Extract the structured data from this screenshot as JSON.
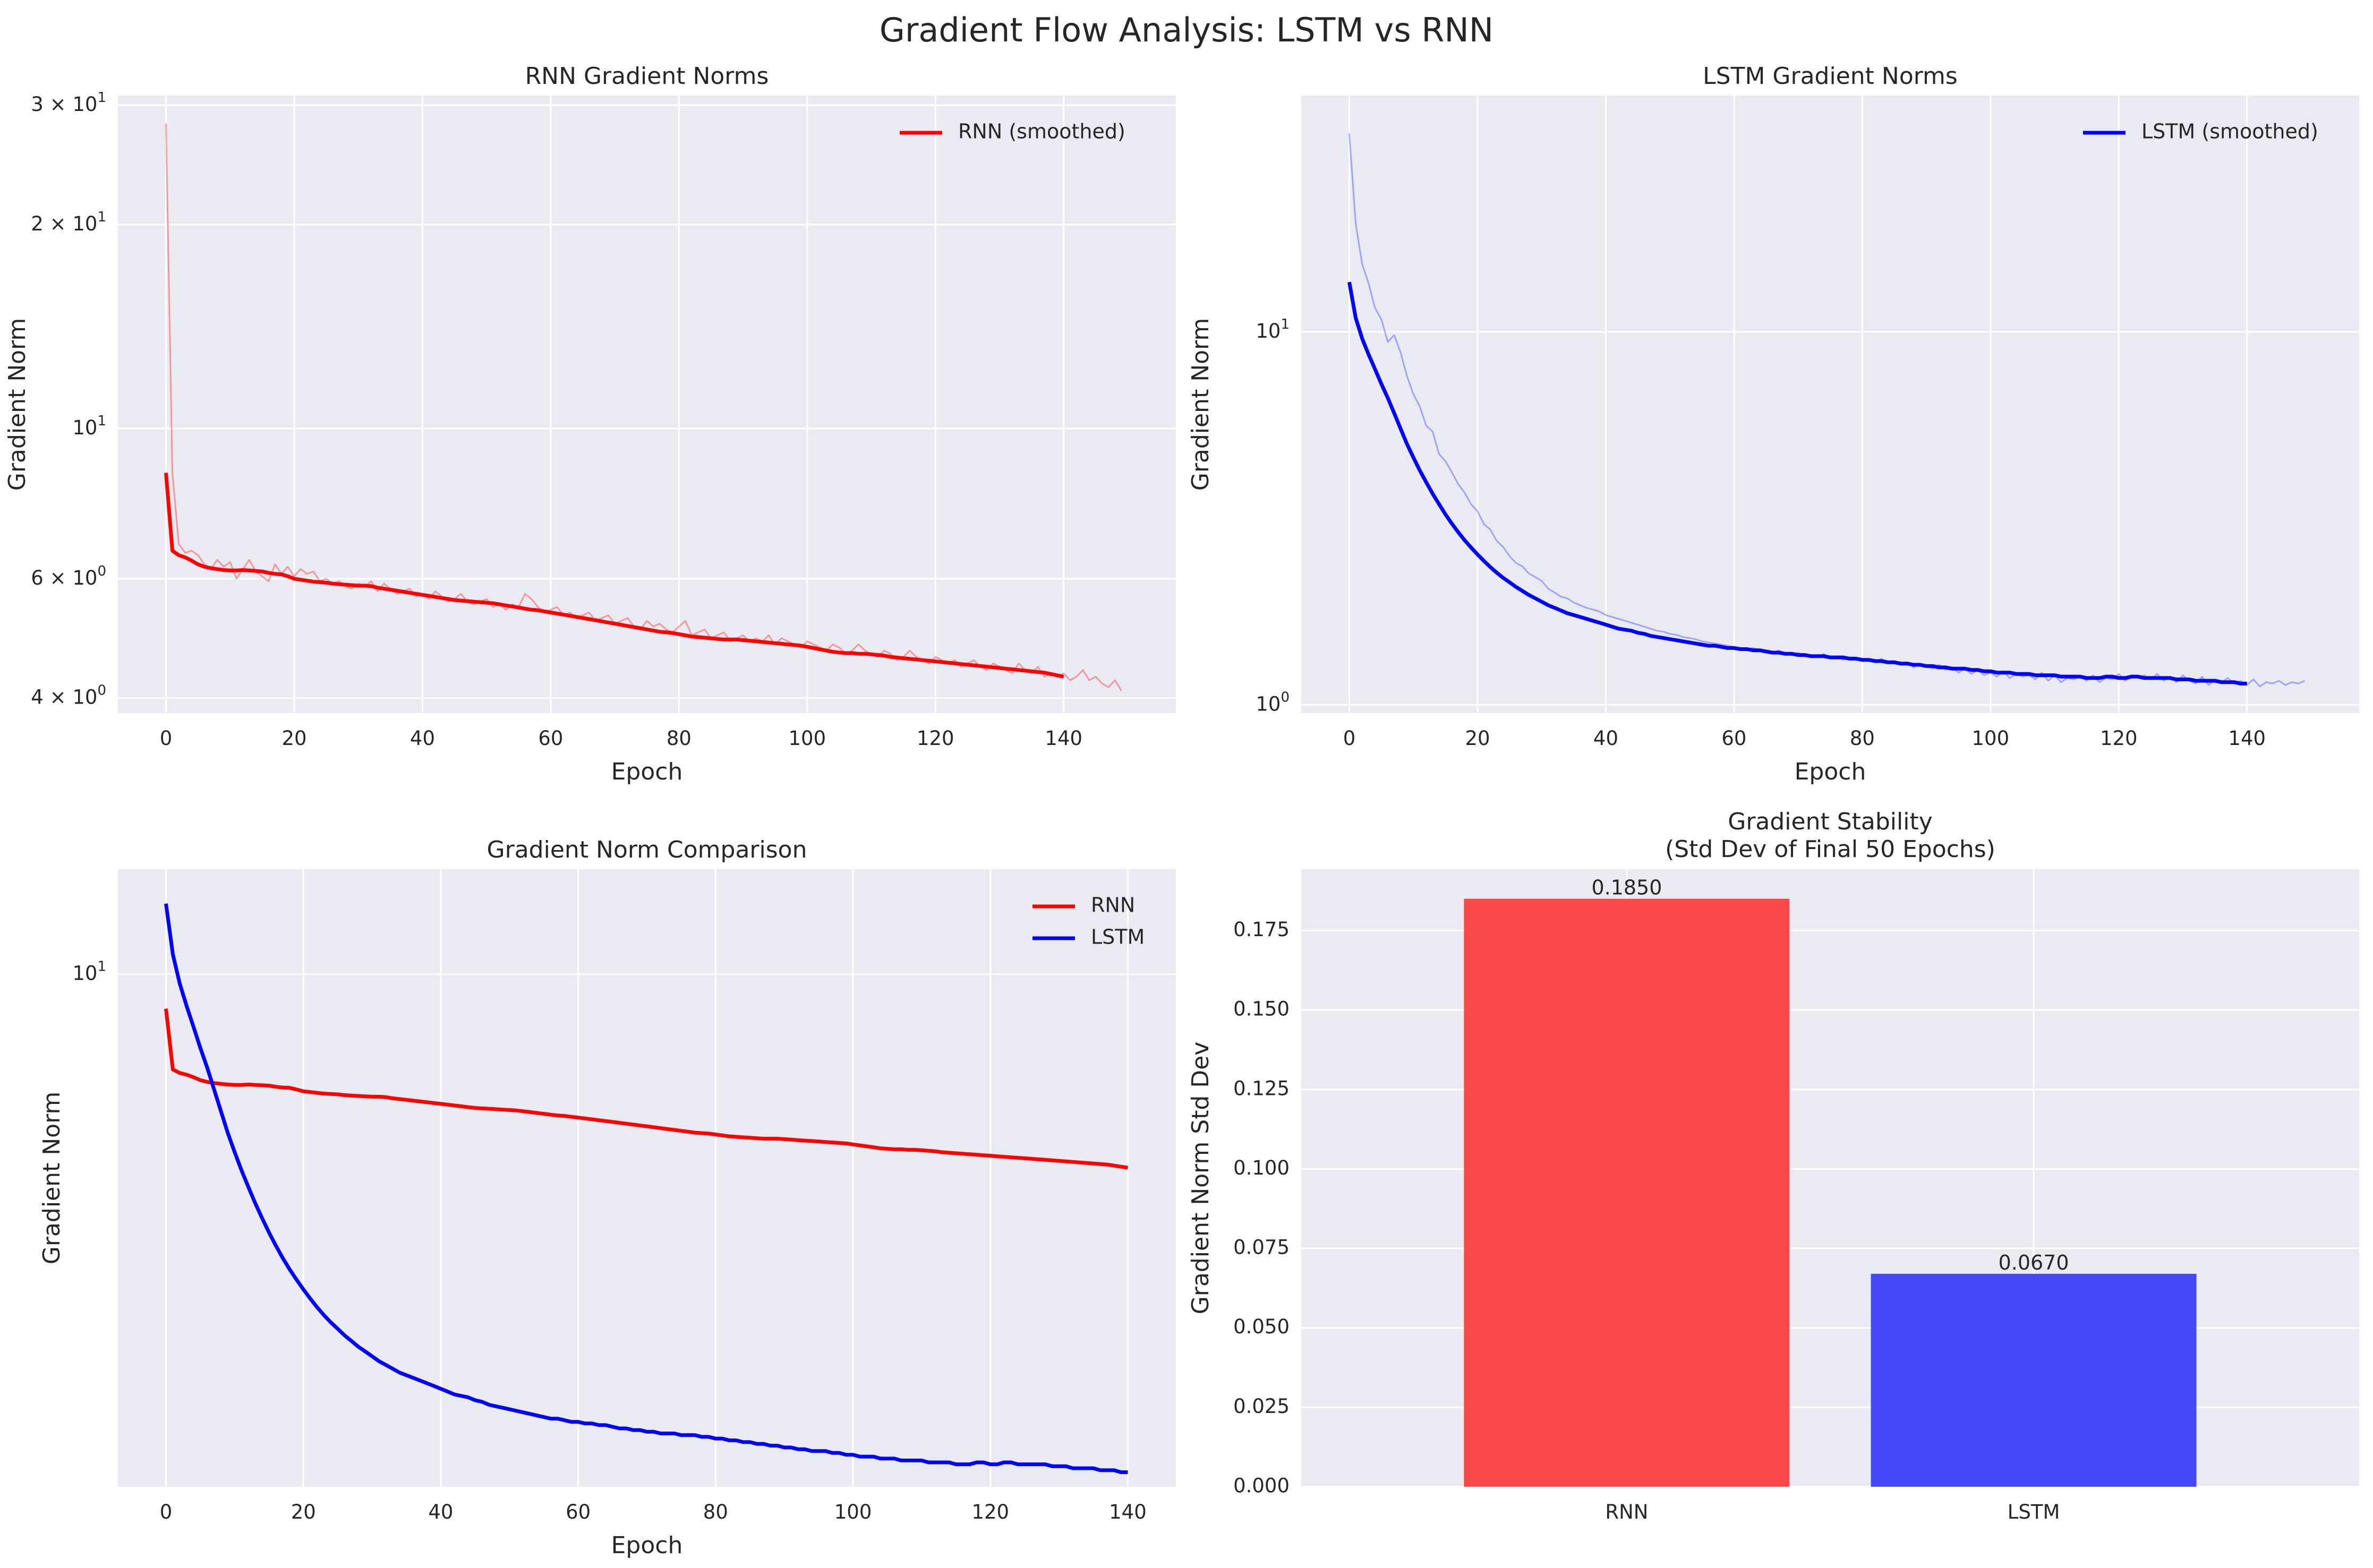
{
  "suptitle": "Gradient Flow Analysis: LSTM vs RNN",
  "colors": {
    "rnn": "#ff0000",
    "lstm": "#0000ff",
    "rnn_bar": "#fa4747",
    "lstm_bar": "#4747fa",
    "panel_bg": "#eaeaf2",
    "grid": "#ffffff"
  },
  "chart_data": [
    {
      "id": "rnn",
      "type": "line",
      "title": "RNN Gradient Norms",
      "xlabel": "Epoch",
      "ylabel": "Gradient Norm",
      "yscale": "log",
      "xlim": [
        -7.5,
        157.5
      ],
      "ylim": [
        3.8,
        31
      ],
      "xticks": [
        0,
        20,
        40,
        60,
        80,
        100,
        120,
        140
      ],
      "xtick_labels": [
        "0",
        "20",
        "40",
        "60",
        "80",
        "100",
        "120",
        "140"
      ],
      "yticks": [
        4,
        6,
        10,
        20,
        30
      ],
      "ytick_labels": [
        "4 × 10⁰",
        "6 × 10⁰",
        "10¹",
        "2 × 10¹",
        "3 × 10¹"
      ],
      "legend": "top-right",
      "grid": true,
      "series": [
        {
          "name": "",
          "style": "raw",
          "color": "#ff0000",
          "alpha": 0.35,
          "x_start": 0,
          "values": [
            28.2,
            8.6,
            6.75,
            6.55,
            6.6,
            6.5,
            6.3,
            6.2,
            6.4,
            6.25,
            6.35,
            6.0,
            6.2,
            6.4,
            6.15,
            6.05,
            5.95,
            6.3,
            6.1,
            6.25,
            6.05,
            6.2,
            6.1,
            6.15,
            5.95,
            6.0,
            5.9,
            5.95,
            5.85,
            5.8,
            5.9,
            5.85,
            5.95,
            5.75,
            5.9,
            5.8,
            5.7,
            5.75,
            5.8,
            5.65,
            5.7,
            5.6,
            5.75,
            5.65,
            5.55,
            5.6,
            5.7,
            5.55,
            5.5,
            5.55,
            5.6,
            5.45,
            5.5,
            5.4,
            5.5,
            5.45,
            5.7,
            5.6,
            5.45,
            5.35,
            5.4,
            5.45,
            5.3,
            5.35,
            5.25,
            5.3,
            5.35,
            5.2,
            5.25,
            5.3,
            5.15,
            5.2,
            5.25,
            5.1,
            5.05,
            5.2,
            5.1,
            5.15,
            5.05,
            5.0,
            5.1,
            5.2,
            4.95,
            5.0,
            5.05,
            4.9,
            4.95,
            5.0,
            4.85,
            4.9,
            4.95,
            4.85,
            4.9,
            4.85,
            4.95,
            4.8,
            4.9,
            4.85,
            4.8,
            4.75,
            4.85,
            4.8,
            4.75,
            4.7,
            4.8,
            4.75,
            4.65,
            4.7,
            4.8,
            4.7,
            4.65,
            4.6,
            4.7,
            4.65,
            4.55,
            4.6,
            4.7,
            4.6,
            4.55,
            4.5,
            4.6,
            4.55,
            4.5,
            4.55,
            4.45,
            4.5,
            4.55,
            4.45,
            4.4,
            4.5,
            4.45,
            4.4,
            4.35,
            4.5,
            4.4,
            4.35,
            4.45,
            4.3,
            4.35,
            4.3,
            4.35,
            4.25,
            4.3,
            4.4,
            4.25,
            4.3,
            4.2,
            4.15,
            4.25,
            4.1
          ]
        },
        {
          "name": "RNN (smoothed)",
          "style": "smooth",
          "color": "#ff0000",
          "alpha": 1,
          "x_start": 0,
          "values": [
            8.6,
            6.6,
            6.5,
            6.45,
            6.38,
            6.3,
            6.25,
            6.22,
            6.2,
            6.18,
            6.17,
            6.17,
            6.18,
            6.17,
            6.16,
            6.15,
            6.12,
            6.1,
            6.09,
            6.05,
            6.0,
            5.98,
            5.96,
            5.94,
            5.93,
            5.92,
            5.9,
            5.89,
            5.88,
            5.87,
            5.86,
            5.86,
            5.85,
            5.82,
            5.8,
            5.78,
            5.76,
            5.74,
            5.72,
            5.7,
            5.68,
            5.66,
            5.64,
            5.62,
            5.6,
            5.58,
            5.57,
            5.56,
            5.55,
            5.54,
            5.53,
            5.52,
            5.5,
            5.48,
            5.46,
            5.44,
            5.42,
            5.4,
            5.39,
            5.37,
            5.35,
            5.33,
            5.31,
            5.29,
            5.27,
            5.25,
            5.23,
            5.21,
            5.19,
            5.17,
            5.15,
            5.13,
            5.11,
            5.09,
            5.07,
            5.05,
            5.03,
            5.01,
            5.0,
            4.99,
            4.97,
            4.95,
            4.93,
            4.92,
            4.91,
            4.9,
            4.89,
            4.88,
            4.88,
            4.88,
            4.87,
            4.86,
            4.85,
            4.84,
            4.83,
            4.82,
            4.81,
            4.8,
            4.79,
            4.78,
            4.76,
            4.74,
            4.72,
            4.7,
            4.68,
            4.67,
            4.66,
            4.66,
            4.65,
            4.65,
            4.64,
            4.63,
            4.62,
            4.6,
            4.59,
            4.58,
            4.57,
            4.56,
            4.55,
            4.54,
            4.53,
            4.52,
            4.51,
            4.5,
            4.49,
            4.48,
            4.47,
            4.46,
            4.45,
            4.44,
            4.43,
            4.42,
            4.41,
            4.4,
            4.39,
            4.38,
            4.37,
            4.36,
            4.34,
            4.32,
            4.3
          ]
        }
      ]
    },
    {
      "id": "lstm",
      "type": "line",
      "title": "LSTM Gradient Norms",
      "xlabel": "Epoch",
      "ylabel": "Gradient Norm",
      "yscale": "log",
      "xlim": [
        -7.5,
        157.5
      ],
      "ylim": [
        0.95,
        43
      ],
      "xticks": [
        0,
        20,
        40,
        60,
        80,
        100,
        120,
        140
      ],
      "xtick_labels": [
        "0",
        "20",
        "40",
        "60",
        "80",
        "100",
        "120",
        "140"
      ],
      "yticks": [
        1,
        10
      ],
      "ytick_labels": [
        "10⁰",
        "10¹"
      ],
      "legend": "top-right",
      "grid": true,
      "series": [
        {
          "name": "",
          "style": "raw",
          "color": "#0000ff",
          "alpha": 0.3,
          "x_start": 0,
          "values": [
            34.0,
            19.5,
            15.2,
            13.5,
            11.6,
            10.8,
            9.4,
            9.8,
            8.8,
            7.6,
            6.8,
            6.3,
            5.6,
            5.4,
            4.7,
            4.5,
            4.2,
            3.9,
            3.7,
            3.45,
            3.3,
            3.05,
            2.95,
            2.75,
            2.65,
            2.5,
            2.4,
            2.35,
            2.25,
            2.2,
            2.15,
            2.05,
            2.0,
            1.95,
            1.93,
            1.88,
            1.85,
            1.82,
            1.8,
            1.78,
            1.74,
            1.72,
            1.7,
            1.68,
            1.66,
            1.64,
            1.62,
            1.6,
            1.58,
            1.57,
            1.55,
            1.54,
            1.52,
            1.51,
            1.5,
            1.48,
            1.47,
            1.46,
            1.45,
            1.44,
            1.43,
            1.42,
            1.41,
            1.42,
            1.4,
            1.39,
            1.38,
            1.4,
            1.37,
            1.36,
            1.38,
            1.35,
            1.36,
            1.34,
            1.37,
            1.33,
            1.35,
            1.32,
            1.34,
            1.33,
            1.31,
            1.32,
            1.3,
            1.33,
            1.29,
            1.31,
            1.28,
            1.3,
            1.26,
            1.29,
            1.27,
            1.25,
            1.28,
            1.24,
            1.26,
            1.22,
            1.25,
            1.21,
            1.24,
            1.2,
            1.22,
            1.19,
            1.23,
            1.18,
            1.21,
            1.19,
            1.2,
            1.17,
            1.22,
            1.16,
            1.2,
            1.15,
            1.18,
            1.17,
            1.19,
            1.16,
            1.2,
            1.15,
            1.18,
            1.17,
            1.21,
            1.16,
            1.19,
            1.18,
            1.2,
            1.17,
            1.21,
            1.16,
            1.19,
            1.15,
            1.2,
            1.16,
            1.14,
            1.19,
            1.13,
            1.17,
            1.15,
            1.18,
            1.14,
            1.16,
            1.13,
            1.17,
            1.12,
            1.15,
            1.14,
            1.16,
            1.13,
            1.15,
            1.14,
            1.16
          ]
        },
        {
          "name": "LSTM (smoothed)",
          "style": "smooth",
          "color": "#0000ff",
          "alpha": 1,
          "x_start": 0,
          "values": [
            13.6,
            10.9,
            9.6,
            8.7,
            7.95,
            7.25,
            6.65,
            6.05,
            5.5,
            5.0,
            4.6,
            4.25,
            3.95,
            3.68,
            3.45,
            3.24,
            3.06,
            2.9,
            2.76,
            2.64,
            2.53,
            2.43,
            2.34,
            2.26,
            2.19,
            2.13,
            2.07,
            2.02,
            1.97,
            1.93,
            1.89,
            1.85,
            1.82,
            1.79,
            1.76,
            1.74,
            1.72,
            1.7,
            1.68,
            1.66,
            1.64,
            1.62,
            1.6,
            1.59,
            1.58,
            1.56,
            1.55,
            1.53,
            1.52,
            1.51,
            1.5,
            1.49,
            1.48,
            1.47,
            1.46,
            1.45,
            1.44,
            1.44,
            1.43,
            1.42,
            1.42,
            1.41,
            1.41,
            1.4,
            1.4,
            1.39,
            1.38,
            1.38,
            1.37,
            1.37,
            1.36,
            1.36,
            1.35,
            1.35,
            1.35,
            1.34,
            1.34,
            1.34,
            1.33,
            1.33,
            1.32,
            1.32,
            1.31,
            1.31,
            1.3,
            1.3,
            1.29,
            1.29,
            1.28,
            1.28,
            1.27,
            1.27,
            1.26,
            1.26,
            1.25,
            1.25,
            1.25,
            1.24,
            1.24,
            1.23,
            1.23,
            1.22,
            1.22,
            1.22,
            1.21,
            1.21,
            1.21,
            1.2,
            1.2,
            1.2,
            1.2,
            1.19,
            1.19,
            1.19,
            1.19,
            1.18,
            1.18,
            1.18,
            1.19,
            1.19,
            1.18,
            1.18,
            1.19,
            1.19,
            1.18,
            1.18,
            1.18,
            1.18,
            1.18,
            1.17,
            1.17,
            1.17,
            1.16,
            1.16,
            1.16,
            1.16,
            1.15,
            1.15,
            1.15,
            1.14,
            1.14
          ]
        }
      ]
    },
    {
      "id": "compare",
      "type": "line",
      "title": "Gradient Norm Comparison",
      "xlabel": "Epoch",
      "ylabel": "Gradient Norm",
      "yscale": "log",
      "xlim": [
        -7,
        147
      ],
      "ylim": [
        1.07,
        15.8
      ],
      "xticks": [
        0,
        20,
        40,
        60,
        80,
        100,
        120,
        140
      ],
      "xtick_labels": [
        "0",
        "20",
        "40",
        "60",
        "80",
        "100",
        "120",
        "140"
      ],
      "yticks": [
        10
      ],
      "ytick_labels": [
        "10¹"
      ],
      "legend": "top-right",
      "grid": true,
      "series": [
        {
          "name": "RNN",
          "style": "smooth",
          "color": "#ff0000",
          "ref": 0
        },
        {
          "name": "LSTM",
          "style": "smooth",
          "color": "#0000ff",
          "ref": 1
        }
      ]
    },
    {
      "id": "stability",
      "type": "bar",
      "title": "Gradient Stability\n(Std Dev of Final 50 Epochs)",
      "title_lines": [
        "Gradient Stability",
        "(Std Dev of Final 50 Epochs)"
      ],
      "xlabel": "",
      "ylabel": "Gradient Norm Std Dev",
      "categories": [
        "RNN",
        "LSTM"
      ],
      "values": [
        0.185,
        0.067
      ],
      "value_labels": [
        "0.1850",
        "0.0670"
      ],
      "bar_colors": [
        "#fa4747",
        "#4747fa"
      ],
      "ylim": [
        0,
        0.1943
      ],
      "yticks": [
        0,
        0.025,
        0.05,
        0.075,
        0.1,
        0.125,
        0.15,
        0.175
      ],
      "ytick_labels": [
        "0.000",
        "0.025",
        "0.050",
        "0.075",
        "0.100",
        "0.125",
        "0.150",
        "0.175"
      ],
      "grid": true
    }
  ]
}
